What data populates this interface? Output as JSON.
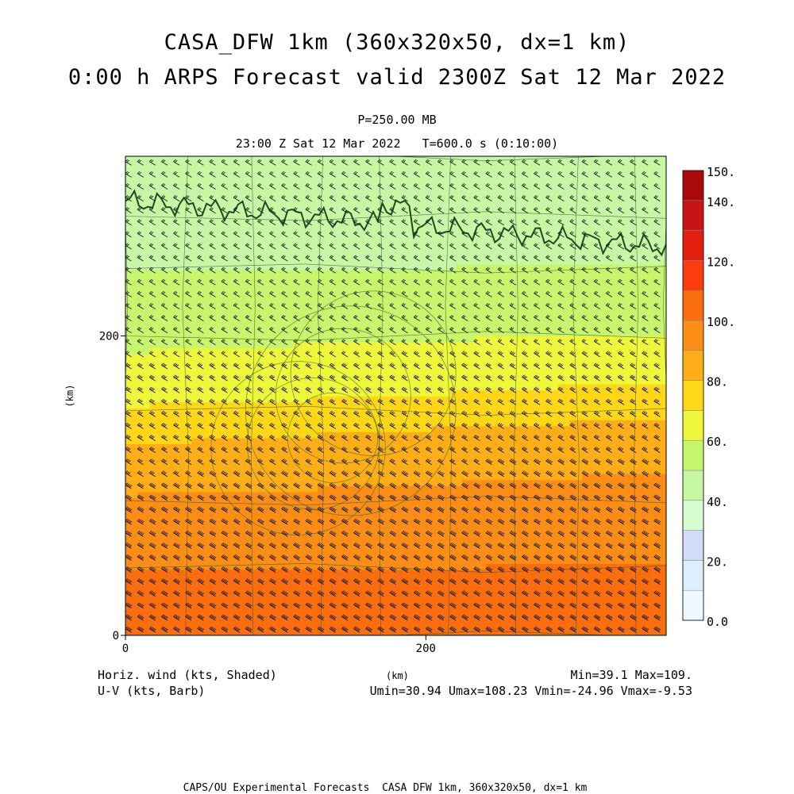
{
  "title_line1": "CASA_DFW 1km (360x320x50, dx=1 km)",
  "title_line2": "0:00 h ARPS Forecast valid 2300Z Sat 12 Mar 2022",
  "level_label": "P=250.00 MB",
  "time_label": "23:00 Z Sat 12 Mar 2022   T=600.0 s (0:10:00)",
  "footer": {
    "left_line1": "Horiz. wind (kts, Shaded)",
    "left_line2": "U-V (kts, Barb)",
    "center_unit": "(km)",
    "right_line1": "Min=39.1 Max=109.",
    "right_line2": "Umin=30.94 Umax=108.23 Vmin=-24.96 Vmax=-9.53",
    "credits": "CAPS/OU Experimental Forecasts  CASA DFW 1km, 360x320x50, dx=1 km"
  },
  "chart_data": {
    "type": "heatmap",
    "xlabel": "(km)",
    "ylabel": "(km)",
    "xlim": [
      0,
      360
    ],
    "ylim": [
      0,
      320
    ],
    "x_ticks": [
      "0",
      "200"
    ],
    "y_ticks": [
      "0",
      "200"
    ],
    "field": "Horiz. wind (kts, Shaded)",
    "min": 39.1,
    "max": 109,
    "colorbar": {
      "range": [
        0,
        150
      ],
      "tick_labels": [
        "150.",
        "140.",
        "120.",
        "100.",
        "80.",
        "60.",
        "40.",
        "20.",
        "0.0"
      ],
      "bins": [
        {
          "from": 0,
          "to": 10,
          "color": "#eef8ff"
        },
        {
          "from": 10,
          "to": 20,
          "color": "#ddeeff"
        },
        {
          "from": 20,
          "to": 30,
          "color": "#d2dcf8"
        },
        {
          "from": 30,
          "to": 40,
          "color": "#d7fcd2"
        },
        {
          "from": 40,
          "to": 50,
          "color": "#c6f7a5"
        },
        {
          "from": 50,
          "to": 60,
          "color": "#c7f56d"
        },
        {
          "from": 60,
          "to": 70,
          "color": "#eff73c"
        },
        {
          "from": 70,
          "to": 80,
          "color": "#ffd719"
        },
        {
          "from": 80,
          "to": 90,
          "color": "#ffae19"
        },
        {
          "from": 90,
          "to": 100,
          "color": "#fc8d16"
        },
        {
          "from": 100,
          "to": 110,
          "color": "#fa6e0f"
        },
        {
          "from": 110,
          "to": 120,
          "color": "#fc3c0f"
        },
        {
          "from": 120,
          "to": 130,
          "color": "#e21e0f"
        },
        {
          "from": 130,
          "to": 140,
          "color": "#c81414"
        },
        {
          "from": 140,
          "to": 150,
          "color": "#aa0a0a"
        }
      ]
    },
    "speed_profile": {
      "y_km": [
        0,
        40,
        80,
        110,
        140,
        160,
        200,
        240,
        280,
        320
      ],
      "speed_kts": [
        106,
        101,
        94,
        88,
        79,
        70,
        59,
        51,
        44,
        41
      ]
    },
    "barbs": "U-V (kts, Barb)",
    "u_range": [
      30.94,
      108.23
    ],
    "v_range": [
      -24.96,
      -9.53
    ]
  }
}
